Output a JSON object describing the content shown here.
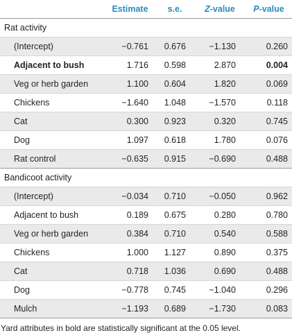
{
  "header": {
    "col_label": "",
    "col_estimate": "Estimate",
    "col_se": "s.e.",
    "col_z_italic": "Z",
    "col_z_rest": "-value",
    "col_p_italic": "P",
    "col_p_rest": "-value"
  },
  "sections": [
    {
      "title": "Rat activity",
      "rows": [
        {
          "label": "(Intercept)",
          "estimate": "−0.761",
          "se": "0.676",
          "z": "−1.130",
          "p": "0.260",
          "bold": false
        },
        {
          "label": "Adjacent to bush",
          "estimate": "1.716",
          "se": "0.598",
          "z": "2.870",
          "p": "0.004",
          "bold": true
        },
        {
          "label": "Veg or herb garden",
          "estimate": "1.100",
          "se": "0.604",
          "z": "1.820",
          "p": "0.069",
          "bold": false
        },
        {
          "label": "Chickens",
          "estimate": "−1.640",
          "se": "1.048",
          "z": "−1.570",
          "p": "0.118",
          "bold": false
        },
        {
          "label": "Cat",
          "estimate": "0.300",
          "se": "0.923",
          "z": "0.320",
          "p": "0.745",
          "bold": false
        },
        {
          "label": "Dog",
          "estimate": "1.097",
          "se": "0.618",
          "z": "1.780",
          "p": "0.076",
          "bold": false
        },
        {
          "label": "Rat control",
          "estimate": "−0.635",
          "se": "0.915",
          "z": "−0.690",
          "p": "0.488",
          "bold": false
        }
      ]
    },
    {
      "title": "Bandicoot activity",
      "rows": [
        {
          "label": "(Intercept)",
          "estimate": "−0.034",
          "se": "0.710",
          "z": "−0.050",
          "p": "0.962",
          "bold": false
        },
        {
          "label": "Adjacent to bush",
          "estimate": "0.189",
          "se": "0.675",
          "z": "0.280",
          "p": "0.780",
          "bold": false
        },
        {
          "label": "Veg or herb garden",
          "estimate": "0.384",
          "se": "0.710",
          "z": "0.540",
          "p": "0.588",
          "bold": false
        },
        {
          "label": "Chickens",
          "estimate": "1.000",
          "se": "1.127",
          "z": "0.890",
          "p": "0.375",
          "bold": false
        },
        {
          "label": "Cat",
          "estimate": "0.718",
          "se": "1.036",
          "z": "0.690",
          "p": "0.488",
          "bold": false
        },
        {
          "label": "Dog",
          "estimate": "−0.778",
          "se": "0.745",
          "z": "−1.040",
          "p": "0.296",
          "bold": false
        },
        {
          "label": "Mulch",
          "estimate": "−1.193",
          "se": "0.689",
          "z": "−1.730",
          "p": "0.083",
          "bold": false
        }
      ]
    }
  ],
  "footnote": "Yard attributes in bold are statistically significant at the 0.05 level.",
  "colors": {
    "header_text": "#2a8bb8",
    "row_shade": "#eaeaea"
  }
}
